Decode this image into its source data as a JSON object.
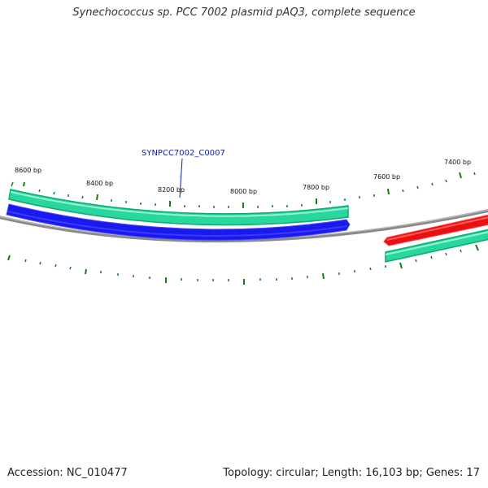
{
  "title": "Synechococcus sp. PCC 7002 plasmid pAQ3, complete sequence",
  "footer": {
    "accession": "Accession: NC_010477",
    "summary": "Topology: circular; Length: 16,103 bp; Genes: 17"
  },
  "ticks": [
    {
      "label": "8600 bp"
    },
    {
      "label": "8400 bp"
    },
    {
      "label": "8200 bp"
    },
    {
      "label": "8000 bp"
    },
    {
      "label": "7800 bp"
    },
    {
      "label": "7600 bp"
    },
    {
      "label": "7400 bp"
    }
  ],
  "genes": [
    {
      "name": "SYNPCC7002_C0007",
      "color": "#1a1aee"
    }
  ],
  "colors": {
    "backbone": "#808080",
    "forward_feature": "#2ad6a0",
    "forward_feature_edge": "#0eaa6e",
    "reverse_gene": "#1a1aee",
    "red_gene": "#e81010",
    "tick_marks": "#1a7a1a"
  }
}
